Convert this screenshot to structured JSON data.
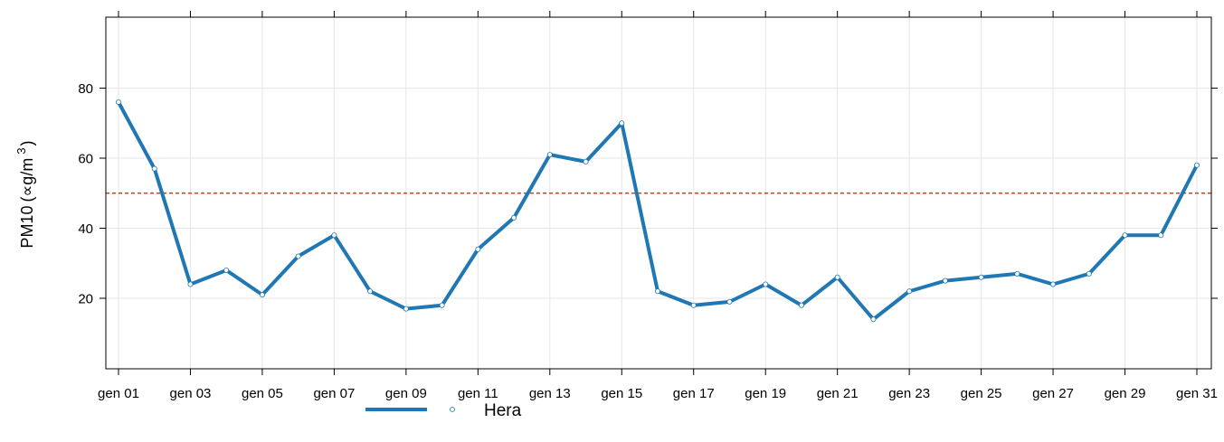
{
  "chart_data": {
    "type": "line",
    "title": "",
    "xlabel": "",
    "ylabel": {
      "prefix": "PM10",
      "paren_open": "(",
      "unit_symbol": "∝",
      "unit_base": "g/m",
      "unit_exp": "3",
      "paren_close": ")"
    },
    "ylim": [
      0,
      100
    ],
    "y_ticks": [
      20,
      40,
      60,
      80
    ],
    "x_ticks": [
      "gen 01",
      "gen 03",
      "gen 05",
      "gen 07",
      "gen 09",
      "gen 11",
      "gen 13",
      "gen 15",
      "gen 17",
      "gen 19",
      "gen 21",
      "gen 23",
      "gen 25",
      "gen 27",
      "gen 29",
      "gen 31"
    ],
    "x_day_range": [
      1,
      31
    ],
    "grid": true,
    "threshold": {
      "value": 50,
      "color": "#ff0000",
      "style": "dashed"
    },
    "series": [
      {
        "name": "Hera",
        "color": "#1f77b4",
        "days": [
          1,
          2,
          3,
          4,
          5,
          6,
          7,
          8,
          9,
          10,
          11,
          12,
          13,
          14,
          15,
          16,
          17,
          18,
          19,
          20,
          21,
          22,
          23,
          24,
          25,
          26,
          27,
          28,
          29,
          30,
          31
        ],
        "values": [
          76,
          57,
          24,
          28,
          21,
          32,
          38,
          22,
          17,
          18,
          34,
          43,
          61,
          59,
          70,
          22,
          18,
          19,
          24,
          18,
          26,
          14,
          22,
          25,
          26,
          27,
          24,
          27,
          38,
          38,
          58
        ]
      }
    ],
    "legend_position": "bottom"
  }
}
